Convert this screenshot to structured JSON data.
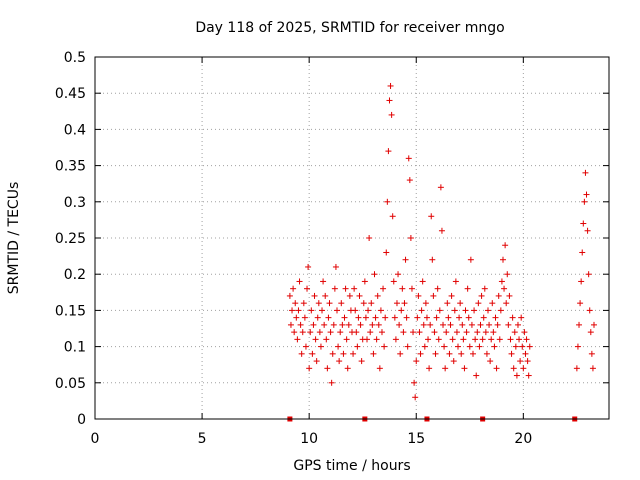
{
  "chart_data": {
    "type": "scatter",
    "title": "Day 118 of 2025, SRMTID for receiver mngo",
    "xlabel": "GPS time / hours",
    "ylabel": "SRMTID / TECUs",
    "xlim": [
      0,
      24
    ],
    "ylim": [
      0,
      0.5
    ],
    "x_ticks": [
      0,
      5,
      10,
      15,
      20
    ],
    "x_tick_labels": [
      "0",
      "5",
      "10",
      "15",
      "20"
    ],
    "y_ticks": [
      0,
      0.05,
      0.1,
      0.15,
      0.2,
      0.25,
      0.3,
      0.35,
      0.4,
      0.45,
      0.5
    ],
    "y_tick_labels": [
      "0",
      "0.05",
      "0.1",
      "0.15",
      "0.2",
      "0.25",
      "0.3",
      "0.35",
      "0.4",
      "0.45",
      "0.5"
    ],
    "grid": true,
    "marker": "+",
    "color": "#e00000",
    "gap_markers_x": [
      9.1,
      12.6,
      15.5,
      18.1,
      22.4
    ],
    "series": [
      {
        "name": "SRMTID",
        "points": [
          [
            9.1,
            0.17
          ],
          [
            9.15,
            0.13
          ],
          [
            9.2,
            0.15
          ],
          [
            9.25,
            0.18
          ],
          [
            9.3,
            0.12
          ],
          [
            9.35,
            0.16
          ],
          [
            9.4,
            0.14
          ],
          [
            9.45,
            0.11
          ],
          [
            9.5,
            0.15
          ],
          [
            9.55,
            0.19
          ],
          [
            9.6,
            0.13
          ],
          [
            9.65,
            0.09
          ],
          [
            9.7,
            0.12
          ],
          [
            9.75,
            0.16
          ],
          [
            9.8,
            0.14
          ],
          [
            9.85,
            0.1
          ],
          [
            9.9,
            0.18
          ],
          [
            9.95,
            0.21
          ],
          [
            10.0,
            0.07
          ],
          [
            10.05,
            0.12
          ],
          [
            10.1,
            0.15
          ],
          [
            10.15,
            0.09
          ],
          [
            10.2,
            0.13
          ],
          [
            10.25,
            0.17
          ],
          [
            10.3,
            0.11
          ],
          [
            10.35,
            0.08
          ],
          [
            10.4,
            0.14
          ],
          [
            10.45,
            0.16
          ],
          [
            10.5,
            0.12
          ],
          [
            10.55,
            0.1
          ],
          [
            10.6,
            0.15
          ],
          [
            10.65,
            0.19
          ],
          [
            10.7,
            0.13
          ],
          [
            10.75,
            0.17
          ],
          [
            10.8,
            0.11
          ],
          [
            10.85,
            0.07
          ],
          [
            10.9,
            0.14
          ],
          [
            10.95,
            0.16
          ],
          [
            11.0,
            0.12
          ],
          [
            11.05,
            0.05
          ],
          [
            11.1,
            0.09
          ],
          [
            11.15,
            0.13
          ],
          [
            11.2,
            0.18
          ],
          [
            11.25,
            0.21
          ],
          [
            11.3,
            0.15
          ],
          [
            11.35,
            0.1
          ],
          [
            11.4,
            0.08
          ],
          [
            11.45,
            0.12
          ],
          [
            11.5,
            0.16
          ],
          [
            11.55,
            0.13
          ],
          [
            11.6,
            0.09
          ],
          [
            11.65,
            0.14
          ],
          [
            11.7,
            0.18
          ],
          [
            11.75,
            0.11
          ],
          [
            11.8,
            0.07
          ],
          [
            11.85,
            0.13
          ],
          [
            11.9,
            0.17
          ],
          [
            11.95,
            0.15
          ],
          [
            12.0,
            0.12
          ],
          [
            12.05,
            0.09
          ],
          [
            12.1,
            0.18
          ],
          [
            12.15,
            0.15
          ],
          [
            12.2,
            0.12
          ],
          [
            12.25,
            0.1
          ],
          [
            12.3,
            0.14
          ],
          [
            12.35,
            0.17
          ],
          [
            12.4,
            0.13
          ],
          [
            12.45,
            0.08
          ],
          [
            12.5,
            0.11
          ],
          [
            12.55,
            0.16
          ],
          [
            12.6,
            0.19
          ],
          [
            12.65,
            0.14
          ],
          [
            12.7,
            0.11
          ],
          [
            12.75,
            0.15
          ],
          [
            12.8,
            0.25
          ],
          [
            12.85,
            0.12
          ],
          [
            12.9,
            0.16
          ],
          [
            12.95,
            0.13
          ],
          [
            13.0,
            0.09
          ],
          [
            13.05,
            0.2
          ],
          [
            13.1,
            0.14
          ],
          [
            13.15,
            0.11
          ],
          [
            13.2,
            0.17
          ],
          [
            13.25,
            0.13
          ],
          [
            13.3,
            0.07
          ],
          [
            13.35,
            0.15
          ],
          [
            13.4,
            0.12
          ],
          [
            13.45,
            0.18
          ],
          [
            13.5,
            0.1
          ],
          [
            13.55,
            0.14
          ],
          [
            13.6,
            0.23
          ],
          [
            13.65,
            0.3
          ],
          [
            13.7,
            0.37
          ],
          [
            13.75,
            0.44
          ],
          [
            13.8,
            0.46
          ],
          [
            13.85,
            0.42
          ],
          [
            13.9,
            0.28
          ],
          [
            13.95,
            0.19
          ],
          [
            14.0,
            0.14
          ],
          [
            14.05,
            0.11
          ],
          [
            14.1,
            0.16
          ],
          [
            14.15,
            0.2
          ],
          [
            14.2,
            0.13
          ],
          [
            14.25,
            0.09
          ],
          [
            14.3,
            0.15
          ],
          [
            14.35,
            0.18
          ],
          [
            14.4,
            0.12
          ],
          [
            14.45,
            0.16
          ],
          [
            14.5,
            0.22
          ],
          [
            14.55,
            0.14
          ],
          [
            14.6,
            0.1
          ],
          [
            14.65,
            0.36
          ],
          [
            14.7,
            0.33
          ],
          [
            14.75,
            0.25
          ],
          [
            14.8,
            0.18
          ],
          [
            14.85,
            0.12
          ],
          [
            14.9,
            0.05
          ],
          [
            14.95,
            0.03
          ],
          [
            15.0,
            0.08
          ],
          [
            15.05,
            0.14
          ],
          [
            15.1,
            0.17
          ],
          [
            15.15,
            0.12
          ],
          [
            15.2,
            0.09
          ],
          [
            15.25,
            0.15
          ],
          [
            15.3,
            0.19
          ],
          [
            15.35,
            0.13
          ],
          [
            15.4,
            0.1
          ],
          [
            15.45,
            0.16
          ],
          [
            15.5,
            0.14
          ],
          [
            15.55,
            0.11
          ],
          [
            15.6,
            0.07
          ],
          [
            15.65,
            0.13
          ],
          [
            15.7,
            0.28
          ],
          [
            15.75,
            0.22
          ],
          [
            15.8,
            0.17
          ],
          [
            15.85,
            0.12
          ],
          [
            15.9,
            0.09
          ],
          [
            15.95,
            0.14
          ],
          [
            16.0,
            0.18
          ],
          [
            16.05,
            0.11
          ],
          [
            16.1,
            0.15
          ],
          [
            16.15,
            0.32
          ],
          [
            16.2,
            0.26
          ],
          [
            16.25,
            0.13
          ],
          [
            16.3,
            0.1
          ],
          [
            16.35,
            0.07
          ],
          [
            16.4,
            0.12
          ],
          [
            16.45,
            0.16
          ],
          [
            16.5,
            0.14
          ],
          [
            16.55,
            0.09
          ],
          [
            16.6,
            0.13
          ],
          [
            16.65,
            0.17
          ],
          [
            16.7,
            0.11
          ],
          [
            16.75,
            0.08
          ],
          [
            16.8,
            0.15
          ],
          [
            16.85,
            0.19
          ],
          [
            16.9,
            0.12
          ],
          [
            16.95,
            0.1
          ],
          [
            17.0,
            0.14
          ],
          [
            17.05,
            0.16
          ],
          [
            17.1,
            0.09
          ],
          [
            17.15,
            0.13
          ],
          [
            17.2,
            0.11
          ],
          [
            17.25,
            0.07
          ],
          [
            17.3,
            0.15
          ],
          [
            17.35,
            0.12
          ],
          [
            17.4,
            0.18
          ],
          [
            17.45,
            0.14
          ],
          [
            17.5,
            0.1
          ],
          [
            17.55,
            0.22
          ],
          [
            17.6,
            0.13
          ],
          [
            17.65,
            0.09
          ],
          [
            17.7,
            0.15
          ],
          [
            17.75,
            0.11
          ],
          [
            17.8,
            0.06
          ],
          [
            17.85,
            0.12
          ],
          [
            17.9,
            0.16
          ],
          [
            17.95,
            0.1
          ],
          [
            18.0,
            0.13
          ],
          [
            18.05,
            0.17
          ],
          [
            18.1,
            0.11
          ],
          [
            18.15,
            0.14
          ],
          [
            18.2,
            0.18
          ],
          [
            18.25,
            0.12
          ],
          [
            18.3,
            0.09
          ],
          [
            18.35,
            0.15
          ],
          [
            18.4,
            0.13
          ],
          [
            18.45,
            0.08
          ],
          [
            18.5,
            0.11
          ],
          [
            18.55,
            0.16
          ],
          [
            18.6,
            0.12
          ],
          [
            18.65,
            0.1
          ],
          [
            18.7,
            0.14
          ],
          [
            18.75,
            0.07
          ],
          [
            18.8,
            0.13
          ],
          [
            18.85,
            0.17
          ],
          [
            18.9,
            0.11
          ],
          [
            18.95,
            0.15
          ],
          [
            19.0,
            0.19
          ],
          [
            19.05,
            0.22
          ],
          [
            19.1,
            0.18
          ],
          [
            19.15,
            0.24
          ],
          [
            19.2,
            0.16
          ],
          [
            19.25,
            0.2
          ],
          [
            19.3,
            0.13
          ],
          [
            19.35,
            0.17
          ],
          [
            19.4,
            0.11
          ],
          [
            19.45,
            0.09
          ],
          [
            19.5,
            0.14
          ],
          [
            19.55,
            0.07
          ],
          [
            19.6,
            0.12
          ],
          [
            19.65,
            0.1
          ],
          [
            19.7,
            0.06
          ],
          [
            19.75,
            0.13
          ],
          [
            19.8,
            0.11
          ],
          [
            19.85,
            0.08
          ],
          [
            19.9,
            0.14
          ],
          [
            19.95,
            0.1
          ],
          [
            20.0,
            0.07
          ],
          [
            20.05,
            0.12
          ],
          [
            20.1,
            0.09
          ],
          [
            20.15,
            0.11
          ],
          [
            20.2,
            0.08
          ],
          [
            20.25,
            0.06
          ],
          [
            20.3,
            0.1
          ],
          [
            22.5,
            0.07
          ],
          [
            22.55,
            0.1
          ],
          [
            22.6,
            0.13
          ],
          [
            22.65,
            0.16
          ],
          [
            22.7,
            0.19
          ],
          [
            22.75,
            0.23
          ],
          [
            22.8,
            0.27
          ],
          [
            22.85,
            0.3
          ],
          [
            22.9,
            0.34
          ],
          [
            22.95,
            0.31
          ],
          [
            23.0,
            0.26
          ],
          [
            23.05,
            0.2
          ],
          [
            23.1,
            0.15
          ],
          [
            23.15,
            0.12
          ],
          [
            23.2,
            0.09
          ],
          [
            23.25,
            0.07
          ],
          [
            23.3,
            0.13
          ]
        ]
      }
    ]
  }
}
